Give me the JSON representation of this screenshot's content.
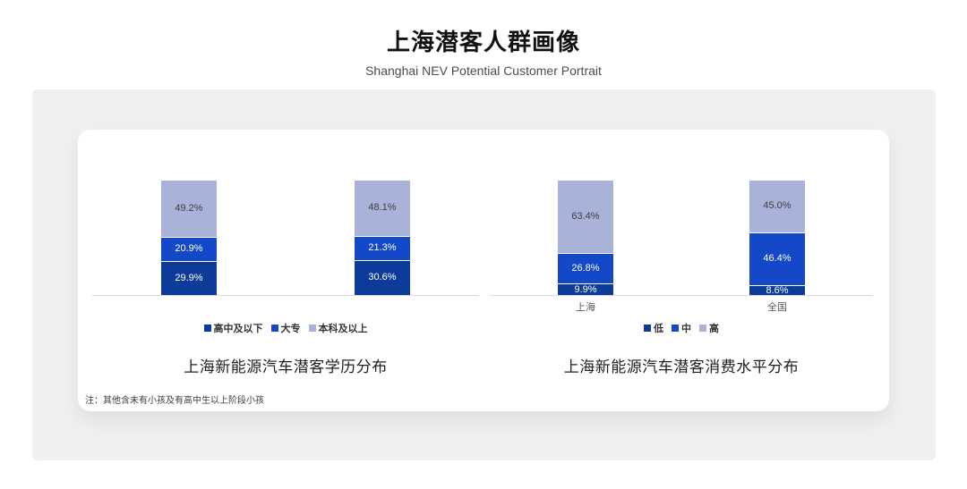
{
  "header": {
    "title": "上海潜客人群画像",
    "subtitle": "Shanghai NEV Potential Customer Portrait"
  },
  "footnote": "注：其他含未有小孩及有高中生以上阶段小孩",
  "colors": {
    "dark_blue": "#0d3b9a",
    "mid_blue": "#1349c8",
    "light_blue": "#a9b2d8",
    "axis_line": "#d9d9d9",
    "panel_bg": "#f0f0f1",
    "card_bg": "#ffffff"
  },
  "chart_data": [
    {
      "type": "bar",
      "stacked": true,
      "percent_total": 100,
      "title": "上海新能源汽车潜客学历分布",
      "categories": [
        "",
        ""
      ],
      "value_suffix": "%",
      "legend_position": "bottom",
      "grid": false,
      "series": [
        {
          "name": "高中及以下",
          "color": "#0d3b9a",
          "label_color": "#ffffff",
          "values": [
            29.9,
            30.6
          ]
        },
        {
          "name": "大专",
          "color": "#1349c8",
          "label_color": "#ffffff",
          "values": [
            20.9,
            21.3
          ]
        },
        {
          "name": "本科及以上",
          "color": "#a9b2d8",
          "label_color": "#404040",
          "values": [
            49.2,
            48.1
          ]
        }
      ]
    },
    {
      "type": "bar",
      "stacked": true,
      "percent_total": 100,
      "title": "上海新能源汽车潜客消费水平分布",
      "categories": [
        "上海",
        "全国"
      ],
      "value_suffix": "%",
      "legend_position": "bottom",
      "grid": false,
      "series": [
        {
          "name": "低",
          "color": "#0d3b9a",
          "label_color": "#ffffff",
          "values": [
            9.9,
            8.6
          ]
        },
        {
          "name": "中",
          "color": "#1349c8",
          "label_color": "#ffffff",
          "values": [
            26.8,
            46.4
          ]
        },
        {
          "name": "高",
          "color": "#a9b2d8",
          "label_color": "#404040",
          "values": [
            63.4,
            45.0
          ]
        }
      ]
    }
  ]
}
